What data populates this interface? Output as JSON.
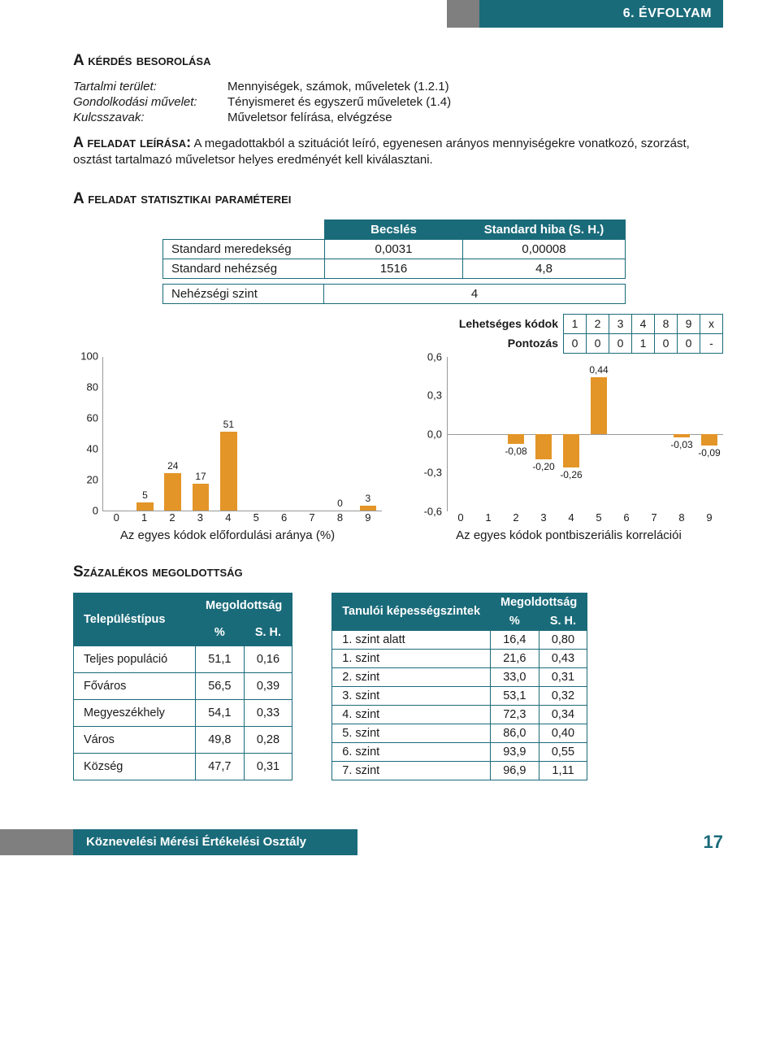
{
  "header": {
    "grade": "6. ÉVFOLYAM"
  },
  "classification": {
    "title": "A kérdés besorolása",
    "rows": [
      {
        "label": "Tartalmi terület:",
        "value": "Mennyiségek, számok, műveletek (1.2.1)"
      },
      {
        "label": "Gondolkodási művelet:",
        "value": "Tényismeret és egyszerű műveletek (1.4)"
      },
      {
        "label": "Kulcsszavak:",
        "value": "Műveletsor felírása, elvégzése"
      }
    ]
  },
  "description": {
    "lead": "A feladat leírása:",
    "text": " A megadottakból a szituációt leíró, egyenesen arányos mennyiségekre vonatkozó, szorzást, osztást tartalmazó műveletsor helyes eredményét kell kiválasztani."
  },
  "stats": {
    "title": "A feladat statisztikai paraméterei",
    "headers": {
      "est": "Becslés",
      "se": "Standard hiba (S. H.)"
    },
    "rows": [
      {
        "label": "Standard meredekség",
        "est": "0,0031",
        "se": "0,00008"
      },
      {
        "label": "Standard nehézség",
        "est": "1516",
        "se": "4,8"
      }
    ],
    "level": {
      "label": "Nehézségi szint",
      "value": "4"
    }
  },
  "codes": {
    "label_codes": "Lehetséges kódok",
    "label_scores": "Pontozás",
    "codes": [
      "1",
      "2",
      "3",
      "4",
      "8",
      "9",
      "x"
    ],
    "scores": [
      "0",
      "0",
      "0",
      "1",
      "0",
      "0",
      "-"
    ]
  },
  "chart_left": {
    "type": "bar",
    "ylabel_ticks": [
      0,
      20,
      40,
      60,
      80,
      100
    ],
    "ylim": [
      0,
      100
    ],
    "x": [
      0,
      1,
      2,
      3,
      4,
      5,
      6,
      7,
      8,
      9
    ],
    "values": [
      null,
      5,
      24,
      17,
      51,
      null,
      null,
      null,
      0,
      3
    ],
    "bar_color": "#e39528",
    "title": "Az egyes kódok előfordulási aránya (%)"
  },
  "chart_right": {
    "type": "bar",
    "ylabel_ticks": [
      -0.6,
      -0.3,
      0.0,
      0.3,
      0.6
    ],
    "ylim": [
      -0.6,
      0.6
    ],
    "x": [
      0,
      1,
      2,
      3,
      4,
      5,
      6,
      7,
      8,
      9
    ],
    "values": [
      null,
      null,
      -0.08,
      -0.2,
      -0.26,
      0.44,
      null,
      null,
      -0.03,
      -0.09
    ],
    "labels": [
      null,
      null,
      "-0,08",
      "-0,20",
      "-0,26",
      "0,44",
      null,
      null,
      "-0,03",
      "-0,09"
    ],
    "bar_color": "#e39528",
    "title": "Az egyes kódok pontbiszeriális korrelációi"
  },
  "solution": {
    "title": "Százalékos megoldottság",
    "left": {
      "col_label": "Településtípus",
      "col_group": "Megoldottság",
      "sub1": "%",
      "sub2": "S. H.",
      "rows": [
        {
          "l": "Teljes populáció",
          "a": "51,1",
          "b": "0,16"
        },
        {
          "l": "Főváros",
          "a": "56,5",
          "b": "0,39"
        },
        {
          "l": "Megyeszékhely",
          "a": "54,1",
          "b": "0,33"
        },
        {
          "l": "Város",
          "a": "49,8",
          "b": "0,28"
        },
        {
          "l": "Község",
          "a": "47,7",
          "b": "0,31"
        }
      ]
    },
    "right": {
      "col_label": "Tanulói képességszintek",
      "col_group": "Megoldottság",
      "sub1": "%",
      "sub2": "S. H.",
      "rows": [
        {
          "l": "1. szint alatt",
          "a": "16,4",
          "b": "0,80"
        },
        {
          "l": "1. szint",
          "a": "21,6",
          "b": "0,43"
        },
        {
          "l": "2. szint",
          "a": "33,0",
          "b": "0,31"
        },
        {
          "l": "3. szint",
          "a": "53,1",
          "b": "0,32"
        },
        {
          "l": "4. szint",
          "a": "72,3",
          "b": "0,34"
        },
        {
          "l": "5. szint",
          "a": "86,0",
          "b": "0,40"
        },
        {
          "l": "6. szint",
          "a": "93,9",
          "b": "0,55"
        },
        {
          "l": "7. szint",
          "a": "96,9",
          "b": "1,11"
        }
      ]
    }
  },
  "footer": {
    "org": "Köznevelési Mérési Értékelési Osztály",
    "page": "17"
  },
  "colors": {
    "brand": "#1a6b7a",
    "accent": "#e39528",
    "grey": "#7f7f7f"
  }
}
